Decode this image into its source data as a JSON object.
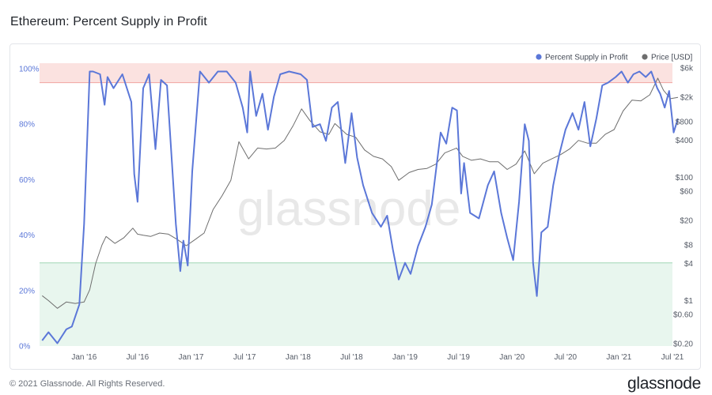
{
  "page": {
    "title": "Ethereum: Percent Supply in Profit",
    "copyright": "© 2021 Glassnode. All Rights Reserved.",
    "brand": "glassnode",
    "watermark": "glassnode"
  },
  "colors": {
    "supply_line": "#5b77d8",
    "price_line": "#6e6e6e",
    "upper_band": "#fbe2e0",
    "upper_threshold": "#f0a5a0",
    "lower_band": "#e8f6ee",
    "lower_threshold": "#9fd6b4",
    "axis_text_left": "#5b77d8",
    "axis_text": "#555b66"
  },
  "legend": {
    "supply_label": "Percent Supply in Profit",
    "price_label": "Price [USD]"
  },
  "chart_data": {
    "type": "line",
    "x_axis": {
      "tick_labels": [
        "Jan '16",
        "Jul '16",
        "Jan '17",
        "Jul '17",
        "Jan '18",
        "Jul '18",
        "Jan '19",
        "Jul '19",
        "Jan '20",
        "Jul '20",
        "Jan '21",
        "Jul '21"
      ],
      "range": [
        "2015-08",
        "2021-07"
      ]
    },
    "y_left": {
      "tick_labels": [
        "0%",
        "20%",
        "40%",
        "60%",
        "80%",
        "100%"
      ],
      "ylim": [
        0,
        1.02
      ]
    },
    "y_right": {
      "scale": "log",
      "tick_labels": [
        "$0.20",
        "$0.60",
        "$1",
        "$4",
        "$8",
        "$20",
        "$60",
        "$100",
        "$400",
        "$800",
        "$2k",
        "$6k"
      ],
      "tick_values": [
        0.2,
        0.6,
        1,
        4,
        8,
        20,
        60,
        100,
        400,
        800,
        2000,
        6000
      ]
    },
    "bands": {
      "upper": [
        0.95,
        1.2
      ],
      "lower": [
        0.0,
        0.3
      ]
    },
    "legend_position": "top-right",
    "series": [
      {
        "name": "Percent Supply in Profit",
        "axis": "left",
        "x": [
          "2015-08-10",
          "2015-09-01",
          "2015-10-01",
          "2015-11-01",
          "2015-11-20",
          "2015-12-15",
          "2016-01-01",
          "2016-01-20",
          "2016-02-01",
          "2016-02-25",
          "2016-03-10",
          "2016-03-20",
          "2016-04-10",
          "2016-05-10",
          "2016-06-10",
          "2016-06-20",
          "2016-07-01",
          "2016-07-20",
          "2016-08-10",
          "2016-09-01",
          "2016-09-20",
          "2016-10-10",
          "2016-11-10",
          "2016-11-25",
          "2016-12-05",
          "2016-12-20",
          "2017-01-05",
          "2017-02-01",
          "2017-03-01",
          "2017-04-01",
          "2017-05-01",
          "2017-06-01",
          "2017-06-25",
          "2017-07-10",
          "2017-07-20",
          "2017-08-10",
          "2017-09-01",
          "2017-09-20",
          "2017-10-10",
          "2017-11-01",
          "2017-12-01",
          "2018-01-10",
          "2018-02-01",
          "2018-02-20",
          "2018-03-15",
          "2018-04-05",
          "2018-04-25",
          "2018-05-15",
          "2018-06-10",
          "2018-07-01",
          "2018-07-20",
          "2018-08-10",
          "2018-09-10",
          "2018-10-10",
          "2018-11-01",
          "2018-11-20",
          "2018-12-10",
          "2019-01-01",
          "2019-01-20",
          "2019-02-15",
          "2019-03-10",
          "2019-04-01",
          "2019-05-01",
          "2019-05-20",
          "2019-06-10",
          "2019-06-26",
          "2019-07-10",
          "2019-07-20",
          "2019-08-10",
          "2019-09-10",
          "2019-10-10",
          "2019-11-01",
          "2019-11-25",
          "2019-12-15",
          "2020-01-05",
          "2020-01-25",
          "2020-02-14",
          "2020-02-28",
          "2020-03-12",
          "2020-03-25",
          "2020-04-10",
          "2020-05-01",
          "2020-05-20",
          "2020-06-10",
          "2020-07-01",
          "2020-07-25",
          "2020-08-15",
          "2020-09-05",
          "2020-09-25",
          "2020-10-15",
          "2020-11-05",
          "2020-11-25",
          "2020-12-20",
          "2021-01-10",
          "2021-02-01",
          "2021-02-20",
          "2021-03-10",
          "2021-04-01",
          "2021-04-20",
          "2021-05-10",
          "2021-05-20",
          "2021-06-05",
          "2021-06-20",
          "2021-07-05",
          "2021-07-20"
        ],
        "y": [
          0.02,
          0.05,
          0.01,
          0.06,
          0.07,
          0.15,
          0.44,
          0.99,
          0.99,
          0.98,
          0.87,
          0.97,
          0.93,
          0.98,
          0.88,
          0.62,
          0.52,
          0.93,
          0.98,
          0.71,
          0.96,
          0.94,
          0.44,
          0.27,
          0.38,
          0.29,
          0.63,
          0.99,
          0.95,
          0.99,
          0.99,
          0.95,
          0.86,
          0.77,
          0.99,
          0.83,
          0.91,
          0.78,
          0.9,
          0.98,
          0.99,
          0.98,
          0.96,
          0.79,
          0.8,
          0.74,
          0.86,
          0.88,
          0.66,
          0.84,
          0.68,
          0.58,
          0.48,
          0.43,
          0.47,
          0.35,
          0.24,
          0.3,
          0.26,
          0.36,
          0.43,
          0.51,
          0.77,
          0.73,
          0.86,
          0.85,
          0.55,
          0.66,
          0.48,
          0.46,
          0.58,
          0.63,
          0.48,
          0.39,
          0.31,
          0.52,
          0.8,
          0.74,
          0.3,
          0.18,
          0.41,
          0.43,
          0.58,
          0.69,
          0.78,
          0.84,
          0.78,
          0.88,
          0.72,
          0.82,
          0.94,
          0.95,
          0.97,
          0.99,
          0.95,
          0.98,
          0.99,
          0.97,
          0.99,
          0.93,
          0.91,
          0.86,
          0.92,
          0.77,
          0.82
        ]
      },
      {
        "name": "Price [USD]",
        "axis": "right",
        "x": [
          "2015-08-10",
          "2015-09-01",
          "2015-10-01",
          "2015-11-01",
          "2015-12-01",
          "2016-01-01",
          "2016-01-20",
          "2016-02-10",
          "2016-03-01",
          "2016-03-15",
          "2016-04-15",
          "2016-05-15",
          "2016-06-15",
          "2016-07-01",
          "2016-07-20",
          "2016-08-15",
          "2016-09-15",
          "2016-10-15",
          "2016-11-15",
          "2016-12-15",
          "2017-01-15",
          "2017-02-15",
          "2017-03-15",
          "2017-04-15",
          "2017-05-15",
          "2017-06-12",
          "2017-07-15",
          "2017-08-15",
          "2017-09-15",
          "2017-10-15",
          "2017-11-15",
          "2017-12-15",
          "2018-01-13",
          "2018-02-10",
          "2018-03-15",
          "2018-04-15",
          "2018-05-05",
          "2018-06-15",
          "2018-07-15",
          "2018-08-15",
          "2018-09-15",
          "2018-10-15",
          "2018-11-15",
          "2018-12-10",
          "2019-01-15",
          "2019-02-15",
          "2019-03-15",
          "2019-04-15",
          "2019-05-15",
          "2019-06-25",
          "2019-07-15",
          "2019-08-15",
          "2019-09-15",
          "2019-10-15",
          "2019-11-15",
          "2019-12-15",
          "2020-01-15",
          "2020-02-14",
          "2020-03-16",
          "2020-04-15",
          "2020-05-15",
          "2020-06-15",
          "2020-07-15",
          "2020-08-15",
          "2020-09-15",
          "2020-10-15",
          "2020-11-15",
          "2020-12-15",
          "2021-01-15",
          "2021-02-15",
          "2021-03-15",
          "2021-04-15",
          "2021-05-12",
          "2021-06-01",
          "2021-06-25",
          "2021-07-20"
        ],
        "y": [
          1.2,
          1.0,
          0.75,
          0.95,
          0.9,
          0.95,
          1.5,
          4.0,
          8.0,
          11.0,
          8.5,
          10.5,
          15.0,
          12.0,
          11.5,
          11.0,
          12.5,
          12.0,
          9.8,
          7.8,
          9.8,
          12.5,
          30.0,
          50.0,
          90.0,
          380.0,
          200.0,
          300.0,
          290.0,
          300.0,
          400.0,
          700.0,
          1300.0,
          850.0,
          550.0,
          500.0,
          750.0,
          500.0,
          450.0,
          280.0,
          220.0,
          200.0,
          150.0,
          90.0,
          120.0,
          135.0,
          140.0,
          165.0,
          250.0,
          300.0,
          220.0,
          190.0,
          200.0,
          180.0,
          180.0,
          135.0,
          165.0,
          270.0,
          115.0,
          170.0,
          200.0,
          235.0,
          290.0,
          400.0,
          360.0,
          360.0,
          500.0,
          600.0,
          1200.0,
          1800.0,
          1750.0,
          2200.0,
          4100.0,
          2600.0,
          1900.0,
          2000.0
        ]
      }
    ]
  }
}
